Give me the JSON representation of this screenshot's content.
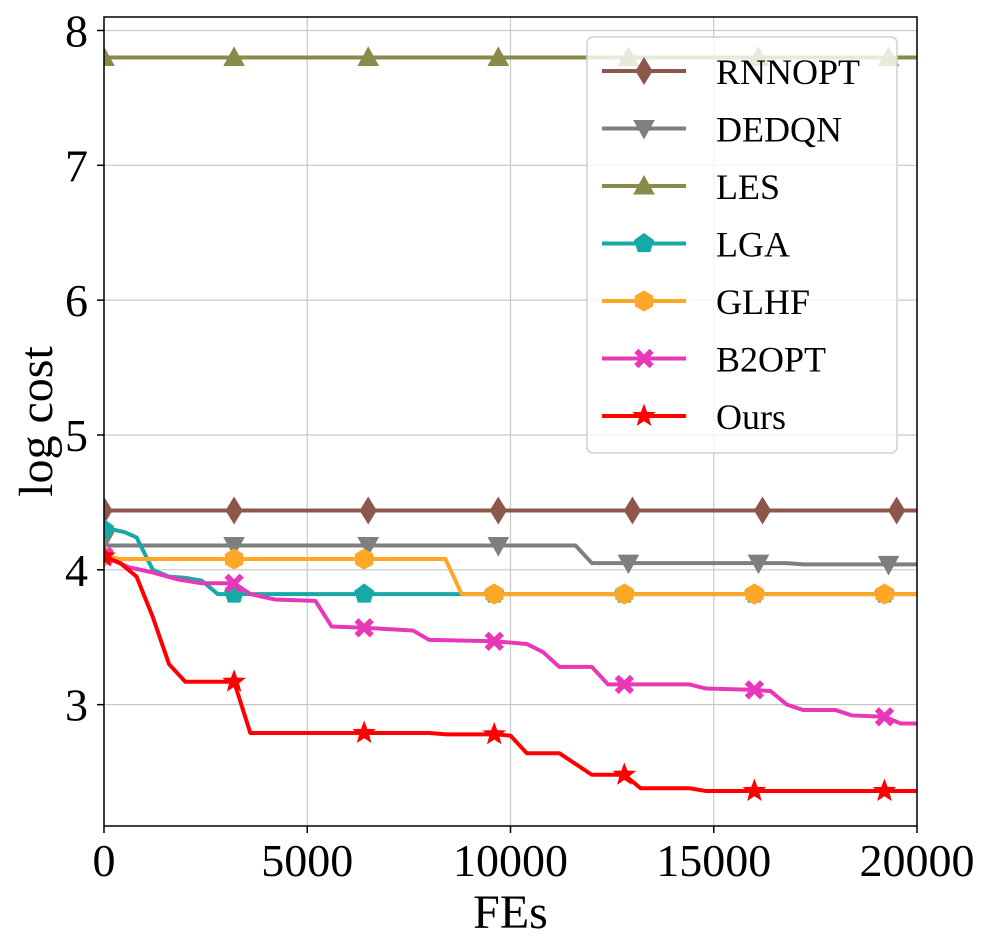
{
  "chart_data": {
    "type": "line",
    "title": "",
    "xlabel": "FEs",
    "ylabel": "log cost",
    "xlim": [
      0,
      20000
    ],
    "ylim": [
      2.1,
      8.1
    ],
    "xticks": [
      0,
      5000,
      10000,
      15000,
      20000
    ],
    "xtick_labels": [
      "0",
      "5000",
      "10000",
      "15000",
      "20000"
    ],
    "yticks": [
      3,
      4,
      5,
      6,
      7,
      8
    ],
    "ytick_labels": [
      "3",
      "4",
      "5",
      "6",
      "7",
      "8"
    ],
    "grid": true,
    "legend_position": "top-right",
    "series": [
      {
        "name": "RNNOPT",
        "color": "#8c564b",
        "marker": "diamond",
        "x": [
          0,
          20000
        ],
        "y": [
          4.44,
          4.44
        ],
        "marker_x": [
          0,
          3200,
          6500,
          9700,
          13000,
          16200,
          19500
        ]
      },
      {
        "name": "DEDQN",
        "color": "#7f7f7f",
        "marker": "triangle-down",
        "x": [
          0,
          100,
          300,
          11600,
          12000,
          16800,
          17200,
          20000
        ],
        "y": [
          4.22,
          4.18,
          4.18,
          4.18,
          4.05,
          4.05,
          4.04,
          4.04
        ],
        "marker_x": [
          0,
          3200,
          6500,
          9700,
          12900,
          16100,
          19300
        ]
      },
      {
        "name": "LES",
        "color": "#8a8a4a",
        "marker": "triangle-up",
        "x": [
          0,
          20000
        ],
        "y": [
          7.8,
          7.8
        ],
        "marker_x": [
          0,
          3200,
          6500,
          9700,
          12900,
          16100,
          19300
        ]
      },
      {
        "name": "LGA",
        "color": "#17a8a8",
        "marker": "pentagon",
        "x": [
          0,
          200,
          500,
          800,
          1200,
          1600,
          2000,
          2400,
          2800,
          3200,
          4000,
          5000,
          6500,
          8000,
          8800,
          20000
        ],
        "y": [
          4.3,
          4.3,
          4.28,
          4.24,
          4.0,
          3.95,
          3.94,
          3.92,
          3.82,
          3.82,
          3.82,
          3.82,
          3.82,
          3.82,
          3.82,
          3.82
        ],
        "marker_x": [
          0,
          3200,
          6400,
          9600,
          12800,
          16000,
          19200
        ]
      },
      {
        "name": "GLHF",
        "color": "#ffa726",
        "marker": "hexagon",
        "x": [
          0,
          400,
          8400,
          8800,
          20000
        ],
        "y": [
          4.1,
          4.08,
          4.08,
          3.82,
          3.82
        ],
        "marker_x": [
          0,
          3200,
          6400,
          9600,
          12800,
          16000,
          19200
        ]
      },
      {
        "name": "B2OPT",
        "color": "#e838b8",
        "marker": "x-filled",
        "x": [
          0,
          600,
          1200,
          1800,
          2400,
          3200,
          3600,
          4200,
          5200,
          5600,
          6400,
          7600,
          8000,
          9600,
          10400,
          10800,
          11200,
          12000,
          12400,
          12800,
          14400,
          14800,
          16000,
          16400,
          16800,
          17200,
          18000,
          18400,
          19200,
          19600,
          20000
        ],
        "y": [
          4.1,
          4.02,
          3.98,
          3.93,
          3.9,
          3.9,
          3.82,
          3.78,
          3.77,
          3.58,
          3.57,
          3.55,
          3.48,
          3.47,
          3.45,
          3.39,
          3.28,
          3.28,
          3.15,
          3.15,
          3.15,
          3.12,
          3.11,
          3.1,
          3.0,
          2.96,
          2.96,
          2.92,
          2.91,
          2.86,
          2.86
        ],
        "marker_x": [
          0,
          3200,
          6400,
          9600,
          12800,
          16000,
          19200
        ]
      },
      {
        "name": "Ours",
        "color": "#ff0000",
        "marker": "star",
        "x": [
          0,
          400,
          800,
          1200,
          1600,
          2000,
          3200,
          3600,
          6400,
          8000,
          8400,
          9600,
          10000,
          10400,
          11200,
          12000,
          12600,
          12800,
          13200,
          14400,
          14800,
          16000,
          20000
        ],
        "y": [
          4.1,
          4.05,
          3.95,
          3.65,
          3.3,
          3.17,
          3.17,
          2.79,
          2.79,
          2.79,
          2.78,
          2.78,
          2.77,
          2.64,
          2.64,
          2.48,
          2.48,
          2.48,
          2.38,
          2.38,
          2.36,
          2.36,
          2.36
        ],
        "marker_x": [
          0,
          3200,
          6400,
          9600,
          12800,
          16000,
          19200
        ]
      }
    ]
  }
}
